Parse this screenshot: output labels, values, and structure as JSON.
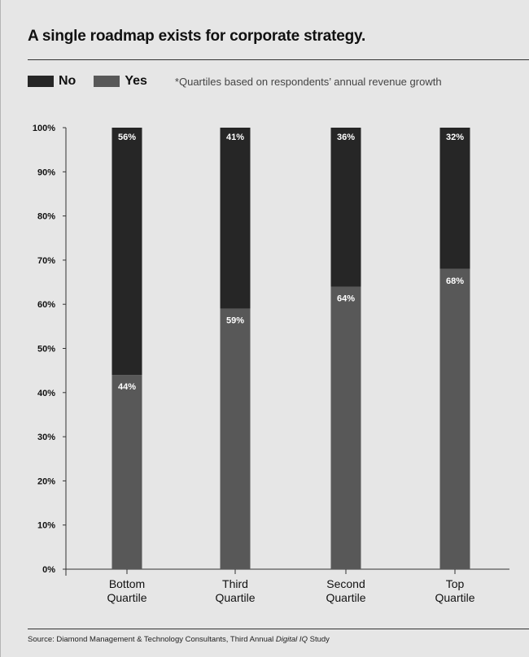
{
  "chart_data": {
    "type": "bar",
    "stacked": true,
    "title": "A single roadmap exists for corporate strategy.",
    "note": "*Quartiles based on respondents’ annual revenue growth",
    "source_prefix": "Source: Diamond Management & Technology Consultants, Third Annual ",
    "source_italic": "Digital IQ",
    "source_suffix": " Study",
    "categories": [
      [
        "Bottom",
        "Quartile"
      ],
      [
        "Third",
        "Quartile"
      ],
      [
        "Second",
        "Quartile"
      ],
      [
        "Top",
        "Quartile"
      ]
    ],
    "series": [
      {
        "name": "Yes",
        "color": "#585858",
        "values": [
          44,
          59,
          64,
          68
        ],
        "labels": [
          "44%",
          "59%",
          "64%",
          "68%"
        ]
      },
      {
        "name": "No",
        "color": "#262626",
        "values": [
          56,
          41,
          36,
          32
        ],
        "labels": [
          "56%",
          "41%",
          "36%",
          "32%"
        ]
      }
    ],
    "legend_order": [
      "No",
      "Yes"
    ],
    "ylim": [
      0,
      100
    ],
    "yticks": [
      "0%",
      "10%",
      "20%",
      "30%",
      "40%",
      "50%",
      "60%",
      "70%",
      "80%",
      "90%",
      "100%"
    ],
    "grid": false,
    "legend_position": "top-left"
  }
}
